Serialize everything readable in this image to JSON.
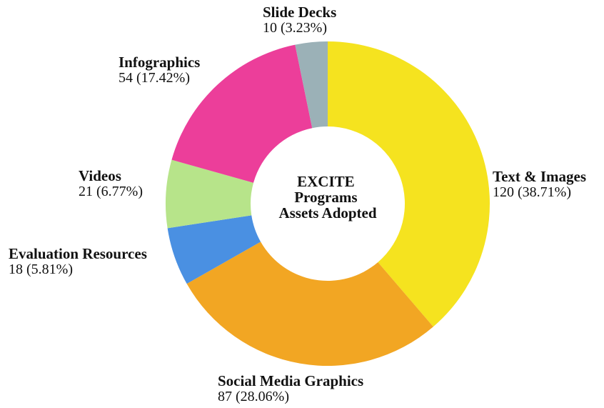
{
  "chart_data": {
    "type": "pie",
    "variant": "donut",
    "title": "",
    "center_label": [
      "EXCITE",
      "Programs",
      "Assets Adopted"
    ],
    "slices": [
      {
        "name": "Text & Images",
        "value": 120,
        "percent_label": "120 (38.71%)",
        "color": "#F5E31F"
      },
      {
        "name": "Social Media Graphics",
        "value": 87,
        "percent_label": "87 (28.06%)",
        "color": "#F2A623"
      },
      {
        "name": "Evaluation Resources",
        "value": 18,
        "percent_label": "18 (5.81%)",
        "color": "#4A90E2"
      },
      {
        "name": "Videos",
        "value": 21,
        "percent_label": "21 (6.77%)",
        "color": "#B7E48A"
      },
      {
        "name": "Infographics",
        "value": 54,
        "percent_label": "54 (17.42%)",
        "color": "#EC3E9A"
      },
      {
        "name": "Slide Decks",
        "value": 10,
        "percent_label": "10 (3.23%)",
        "color": "#9BB1B7"
      }
    ],
    "start_angle_deg": 0,
    "direction": "clockwise"
  }
}
